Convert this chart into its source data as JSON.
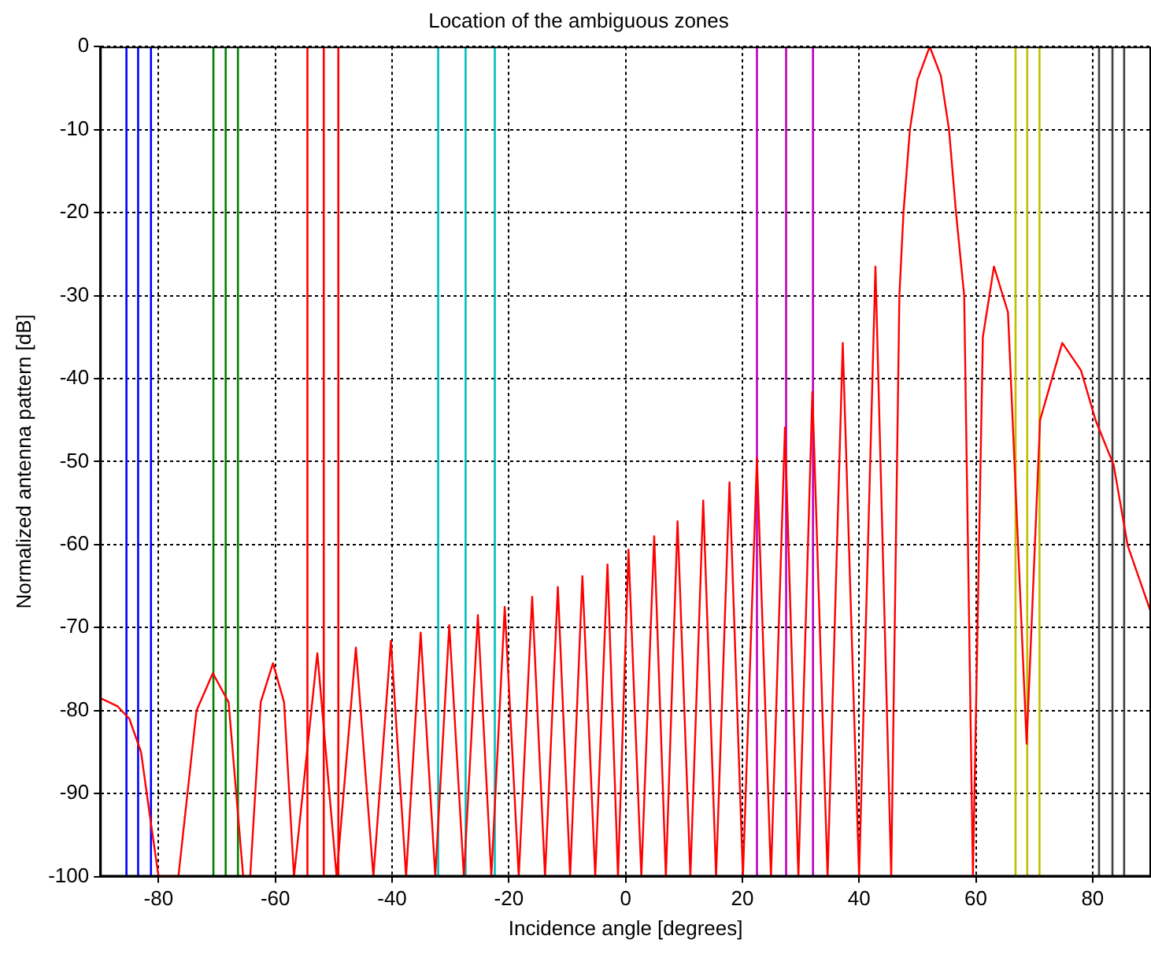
{
  "chart_data": {
    "type": "line",
    "title": "Location of the ambiguous zones",
    "xlabel": "Incidence angle [degrees]",
    "ylabel": "Normalized antenna pattern [dB]",
    "xlim": [
      -90,
      90
    ],
    "ylim": [
      -100,
      0
    ],
    "xticks": [
      -80,
      -60,
      -40,
      -20,
      0,
      20,
      40,
      60,
      80
    ],
    "yticks": [
      0,
      -10,
      -20,
      -30,
      -40,
      -50,
      -60,
      -70,
      -80,
      -90,
      -100
    ],
    "grid": true,
    "series": [
      {
        "color": "#ff0000",
        "x": [
          -90,
          -87,
          -85,
          -83,
          -81.5,
          -80,
          -76.6,
          -73.5,
          -70.7,
          -68,
          -65.5,
          -64.3,
          -62.5,
          -60.4,
          -58.5,
          -56.8,
          -52.8,
          -49.5,
          -46.2,
          -43.2,
          -40.2,
          -37.6,
          -35.1,
          -32.6,
          -30.2,
          -27.7,
          -25.3,
          -23,
          -20.7,
          -18.3,
          -16,
          -13.8,
          -11.6,
          -9.5,
          -7.4,
          -5.2,
          -3.1,
          -1.3,
          0.5,
          2.7,
          4.9,
          6.9,
          8.9,
          11.1,
          13.3,
          15.5,
          17.8,
          20.1,
          22.5,
          24.9,
          27.3,
          29.6,
          32,
          34.6,
          37.2,
          40,
          42.8,
          45.5,
          46.9,
          47.6,
          48.7,
          50,
          52.1,
          54,
          55.4,
          56.6,
          58,
          59.5,
          61.2,
          63.1,
          65.5,
          68.7,
          71,
          74.8,
          78,
          80.5,
          83.6,
          86,
          90
        ],
        "values": [
          -78.5,
          -79.5,
          -81,
          -85,
          -92.6,
          -100,
          -100,
          -80,
          -75.5,
          -79,
          -100,
          -100,
          -79,
          -74.3,
          -79,
          -100,
          -73.1,
          -100,
          -72.4,
          -100,
          -71.6,
          -100,
          -70.6,
          -100,
          -69.7,
          -100,
          -68.5,
          -100,
          -67.5,
          -100,
          -66.3,
          -100,
          -65.1,
          -100,
          -63.8,
          -100,
          -62.4,
          -100,
          -60.6,
          -100,
          -59,
          -100,
          -57.2,
          -100,
          -54.7,
          -100,
          -52.5,
          -100,
          -49.6,
          -100,
          -45.9,
          -100,
          -41.6,
          -100,
          -35.7,
          -100,
          -26.5,
          -100,
          -30,
          -20,
          -10,
          -4,
          0,
          -3.5,
          -10,
          -20,
          -30,
          -100,
          -35,
          -26.5,
          -32,
          -84,
          -45,
          -35.7,
          -39,
          -45,
          -50.4,
          -60.1,
          -68.2
        ]
      }
    ],
    "ref_lines": [
      {
        "axis": "x",
        "value": -85.5,
        "color": "#0000ff"
      },
      {
        "axis": "x",
        "value": -83.5,
        "color": "#0000ff"
      },
      {
        "axis": "x",
        "value": -81.3,
        "color": "#0000ff"
      },
      {
        "axis": "x",
        "value": -70.6,
        "color": "#008000"
      },
      {
        "axis": "x",
        "value": -68.5,
        "color": "#008000"
      },
      {
        "axis": "x",
        "value": -66.4,
        "color": "#008000"
      },
      {
        "axis": "x",
        "value": -54.5,
        "color": "#ff0000"
      },
      {
        "axis": "x",
        "value": -51.7,
        "color": "#ff0000"
      },
      {
        "axis": "x",
        "value": -49.2,
        "color": "#ff0000"
      },
      {
        "axis": "x",
        "value": -32.1,
        "color": "#00bfbf"
      },
      {
        "axis": "x",
        "value": -27.4,
        "color": "#00bfbf"
      },
      {
        "axis": "x",
        "value": -22.4,
        "color": "#00bfbf"
      },
      {
        "axis": "x",
        "value": 22.5,
        "color": "#bf00bf"
      },
      {
        "axis": "x",
        "value": 27.5,
        "color": "#bf00bf"
      },
      {
        "axis": "x",
        "value": 32.1,
        "color": "#bf00bf"
      },
      {
        "axis": "x",
        "value": 66.8,
        "color": "#bfbf00"
      },
      {
        "axis": "x",
        "value": 68.8,
        "color": "#bfbf00"
      },
      {
        "axis": "x",
        "value": 70.9,
        "color": "#bfbf00"
      },
      {
        "axis": "x",
        "value": 81.1,
        "color": "#404040"
      },
      {
        "axis": "x",
        "value": 83.4,
        "color": "#404040"
      },
      {
        "axis": "x",
        "value": 85.4,
        "color": "#404040"
      }
    ]
  }
}
